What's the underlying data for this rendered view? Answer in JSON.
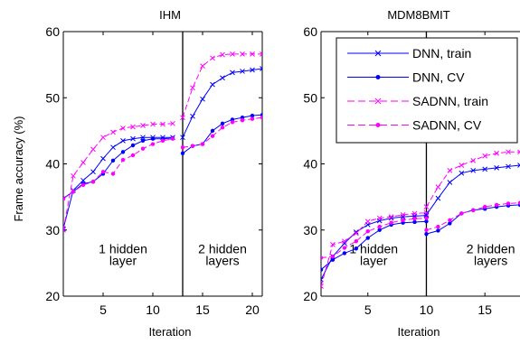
{
  "figure": {
    "ylabel": "Frame accuracy (%)"
  },
  "chart_data": [
    {
      "type": "line",
      "title": "IHM",
      "xlabel": "Iteration",
      "ylabel": "Frame accuracy (%)",
      "xlim": [
        1,
        21
      ],
      "ylim": [
        20,
        60
      ],
      "xticks": [
        5,
        10,
        15,
        20
      ],
      "yticks": [
        20,
        30,
        40,
        50,
        60
      ],
      "grid": false,
      "divider_x": 13,
      "annotations": [
        {
          "lines": [
            "1 hidden",
            "layer"
          ],
          "x": 7,
          "y": 26.5
        },
        {
          "lines": [
            "2 hidden",
            "layers"
          ],
          "x": 17,
          "y": 26.5
        }
      ],
      "series": [
        {
          "name": "DNN, train",
          "color": "#0000ff",
          "marker": "x",
          "dashed": false,
          "segments": [
            {
              "x": [
                1,
                2,
                3,
                4,
                5,
                6,
                7,
                8,
                9,
                10,
                11,
                12
              ],
              "y": [
                30.2,
                36.0,
                37.5,
                38.8,
                40.8,
                42.5,
                43.5,
                43.8,
                44.0,
                44.0,
                44.0,
                44.0
              ]
            },
            {
              "x": [
                13,
                14,
                15,
                16,
                17,
                18,
                19,
                20,
                21
              ],
              "y": [
                44.0,
                47.2,
                49.8,
                52.0,
                53.0,
                53.8,
                54.0,
                54.2,
                54.4
              ]
            }
          ]
        },
        {
          "name": "DNN, CV",
          "color": "#0000ff",
          "marker": "dot",
          "dashed": false,
          "segments": [
            {
              "x": [
                1,
                2,
                3,
                4,
                5,
                6,
                7,
                8,
                9,
                10,
                11,
                12
              ],
              "y": [
                34.8,
                35.8,
                37.0,
                37.3,
                38.5,
                40.5,
                41.8,
                42.8,
                43.5,
                43.8,
                43.8,
                43.9
              ]
            },
            {
              "x": [
                13,
                14,
                15,
                16,
                17,
                18,
                19,
                20,
                21
              ],
              "y": [
                41.6,
                42.7,
                43.0,
                45.0,
                46.1,
                46.7,
                47.0,
                47.3,
                47.4
              ]
            }
          ]
        },
        {
          "name": "SADNN, train",
          "color": "#ff00ff",
          "marker": "x",
          "dashed": true,
          "segments": [
            {
              "x": [
                1,
                2,
                3,
                4,
                5,
                6,
                7,
                8,
                9,
                10,
                11,
                12
              ],
              "y": [
                30.0,
                38.2,
                40.2,
                42.2,
                44.0,
                44.8,
                45.4,
                45.6,
                45.8,
                46.0,
                46.0,
                46.1
              ]
            },
            {
              "x": [
                13,
                14,
                15,
                16,
                17,
                18,
                19,
                20,
                21
              ],
              "y": [
                47.0,
                51.5,
                54.8,
                56.0,
                56.5,
                56.6,
                56.6,
                56.6,
                56.6
              ]
            }
          ]
        },
        {
          "name": "SADNN, CV",
          "color": "#ff00ff",
          "marker": "dot",
          "dashed": true,
          "segments": [
            {
              "x": [
                1,
                2,
                3,
                4,
                5,
                6,
                7,
                8,
                9,
                10,
                11,
                12
              ],
              "y": [
                34.7,
                35.8,
                36.8,
                37.3,
                38.8,
                38.5,
                40.6,
                41.3,
                42.3,
                43.0,
                43.5,
                43.8
              ]
            },
            {
              "x": [
                13,
                14,
                15,
                16,
                17,
                18,
                19,
                20,
                21
              ],
              "y": [
                42.5,
                42.7,
                43.0,
                44.2,
                45.5,
                46.3,
                46.6,
                46.8,
                47.0
              ]
            }
          ]
        }
      ]
    },
    {
      "type": "line",
      "title": "MDM8BMIT",
      "xlabel": "Iteration",
      "ylabel": "",
      "xlim": [
        1,
        18
      ],
      "ylim": [
        20,
        60
      ],
      "xticks": [
        5,
        10,
        15
      ],
      "yticks": [
        20,
        30,
        40,
        50,
        60
      ],
      "grid": false,
      "divider_x": 10,
      "legend": {
        "placement": "top-right"
      },
      "annotations": [
        {
          "lines": [
            "1 hidden",
            "layer"
          ],
          "x": 5.5,
          "y": 26.5
        },
        {
          "lines": [
            "2 hidden",
            "layers"
          ],
          "x": 15.5,
          "y": 26.5
        }
      ],
      "series": [
        {
          "name": "DNN, train",
          "color": "#0000ff",
          "marker": "x",
          "dashed": false,
          "segments": [
            {
              "x": [
                1,
                2,
                3,
                4,
                5,
                6,
                7,
                8,
                9,
                10
              ],
              "y": [
                22.5,
                26.0,
                28.0,
                29.7,
                30.8,
                31.4,
                31.8,
                32.0,
                32.1,
                32.2
              ]
            },
            {
              "x": [
                10,
                11,
                12,
                13,
                14,
                15,
                16,
                17,
                18
              ],
              "y": [
                32.3,
                34.8,
                37.2,
                38.6,
                39.0,
                39.2,
                39.4,
                39.6,
                39.8
              ]
            }
          ]
        },
        {
          "name": "DNN, CV",
          "color": "#0000ff",
          "marker": "dot",
          "dashed": false,
          "segments": [
            {
              "x": [
                1,
                2,
                3,
                4,
                5,
                6,
                7,
                8,
                9,
                10
              ],
              "y": [
                24.0,
                25.5,
                26.5,
                27.2,
                28.8,
                30.0,
                30.8,
                31.1,
                31.2,
                31.3
              ]
            },
            {
              "x": [
                10,
                11,
                12,
                13,
                14,
                15,
                16,
                17,
                18
              ],
              "y": [
                29.4,
                29.9,
                31.0,
                32.5,
                33.0,
                33.2,
                33.5,
                33.7,
                33.8
              ]
            }
          ]
        },
        {
          "name": "SADNN, train",
          "color": "#ff00ff",
          "marker": "x",
          "dashed": true,
          "segments": [
            {
              "x": [
                1,
                2,
                3,
                4,
                5,
                6,
                7,
                8,
                9,
                10
              ],
              "y": [
                21.5,
                27.8,
                28.3,
                29.5,
                31.3,
                31.8,
                32.0,
                32.3,
                32.5,
                32.6
              ]
            },
            {
              "x": [
                10,
                11,
                12,
                13,
                14,
                15,
                16,
                17,
                18
              ],
              "y": [
                33.5,
                36.5,
                39.0,
                39.8,
                40.5,
                41.2,
                41.6,
                41.8,
                41.8
              ]
            }
          ]
        },
        {
          "name": "SADNN, CV",
          "color": "#ff00ff",
          "marker": "dot",
          "dashed": true,
          "segments": [
            {
              "x": [
                1,
                2,
                3,
                4,
                5,
                6,
                7,
                8,
                9,
                10
              ],
              "y": [
                25.8,
                26.0,
                27.3,
                28.3,
                29.8,
                30.5,
                31.1,
                31.5,
                31.7,
                31.8
              ]
            },
            {
              "x": [
                10,
                11,
                12,
                13,
                14,
                15,
                16,
                17,
                18
              ],
              "y": [
                30.0,
                30.5,
                31.5,
                32.5,
                33.0,
                33.5,
                33.8,
                34.0,
                34.1
              ]
            }
          ]
        }
      ]
    }
  ]
}
